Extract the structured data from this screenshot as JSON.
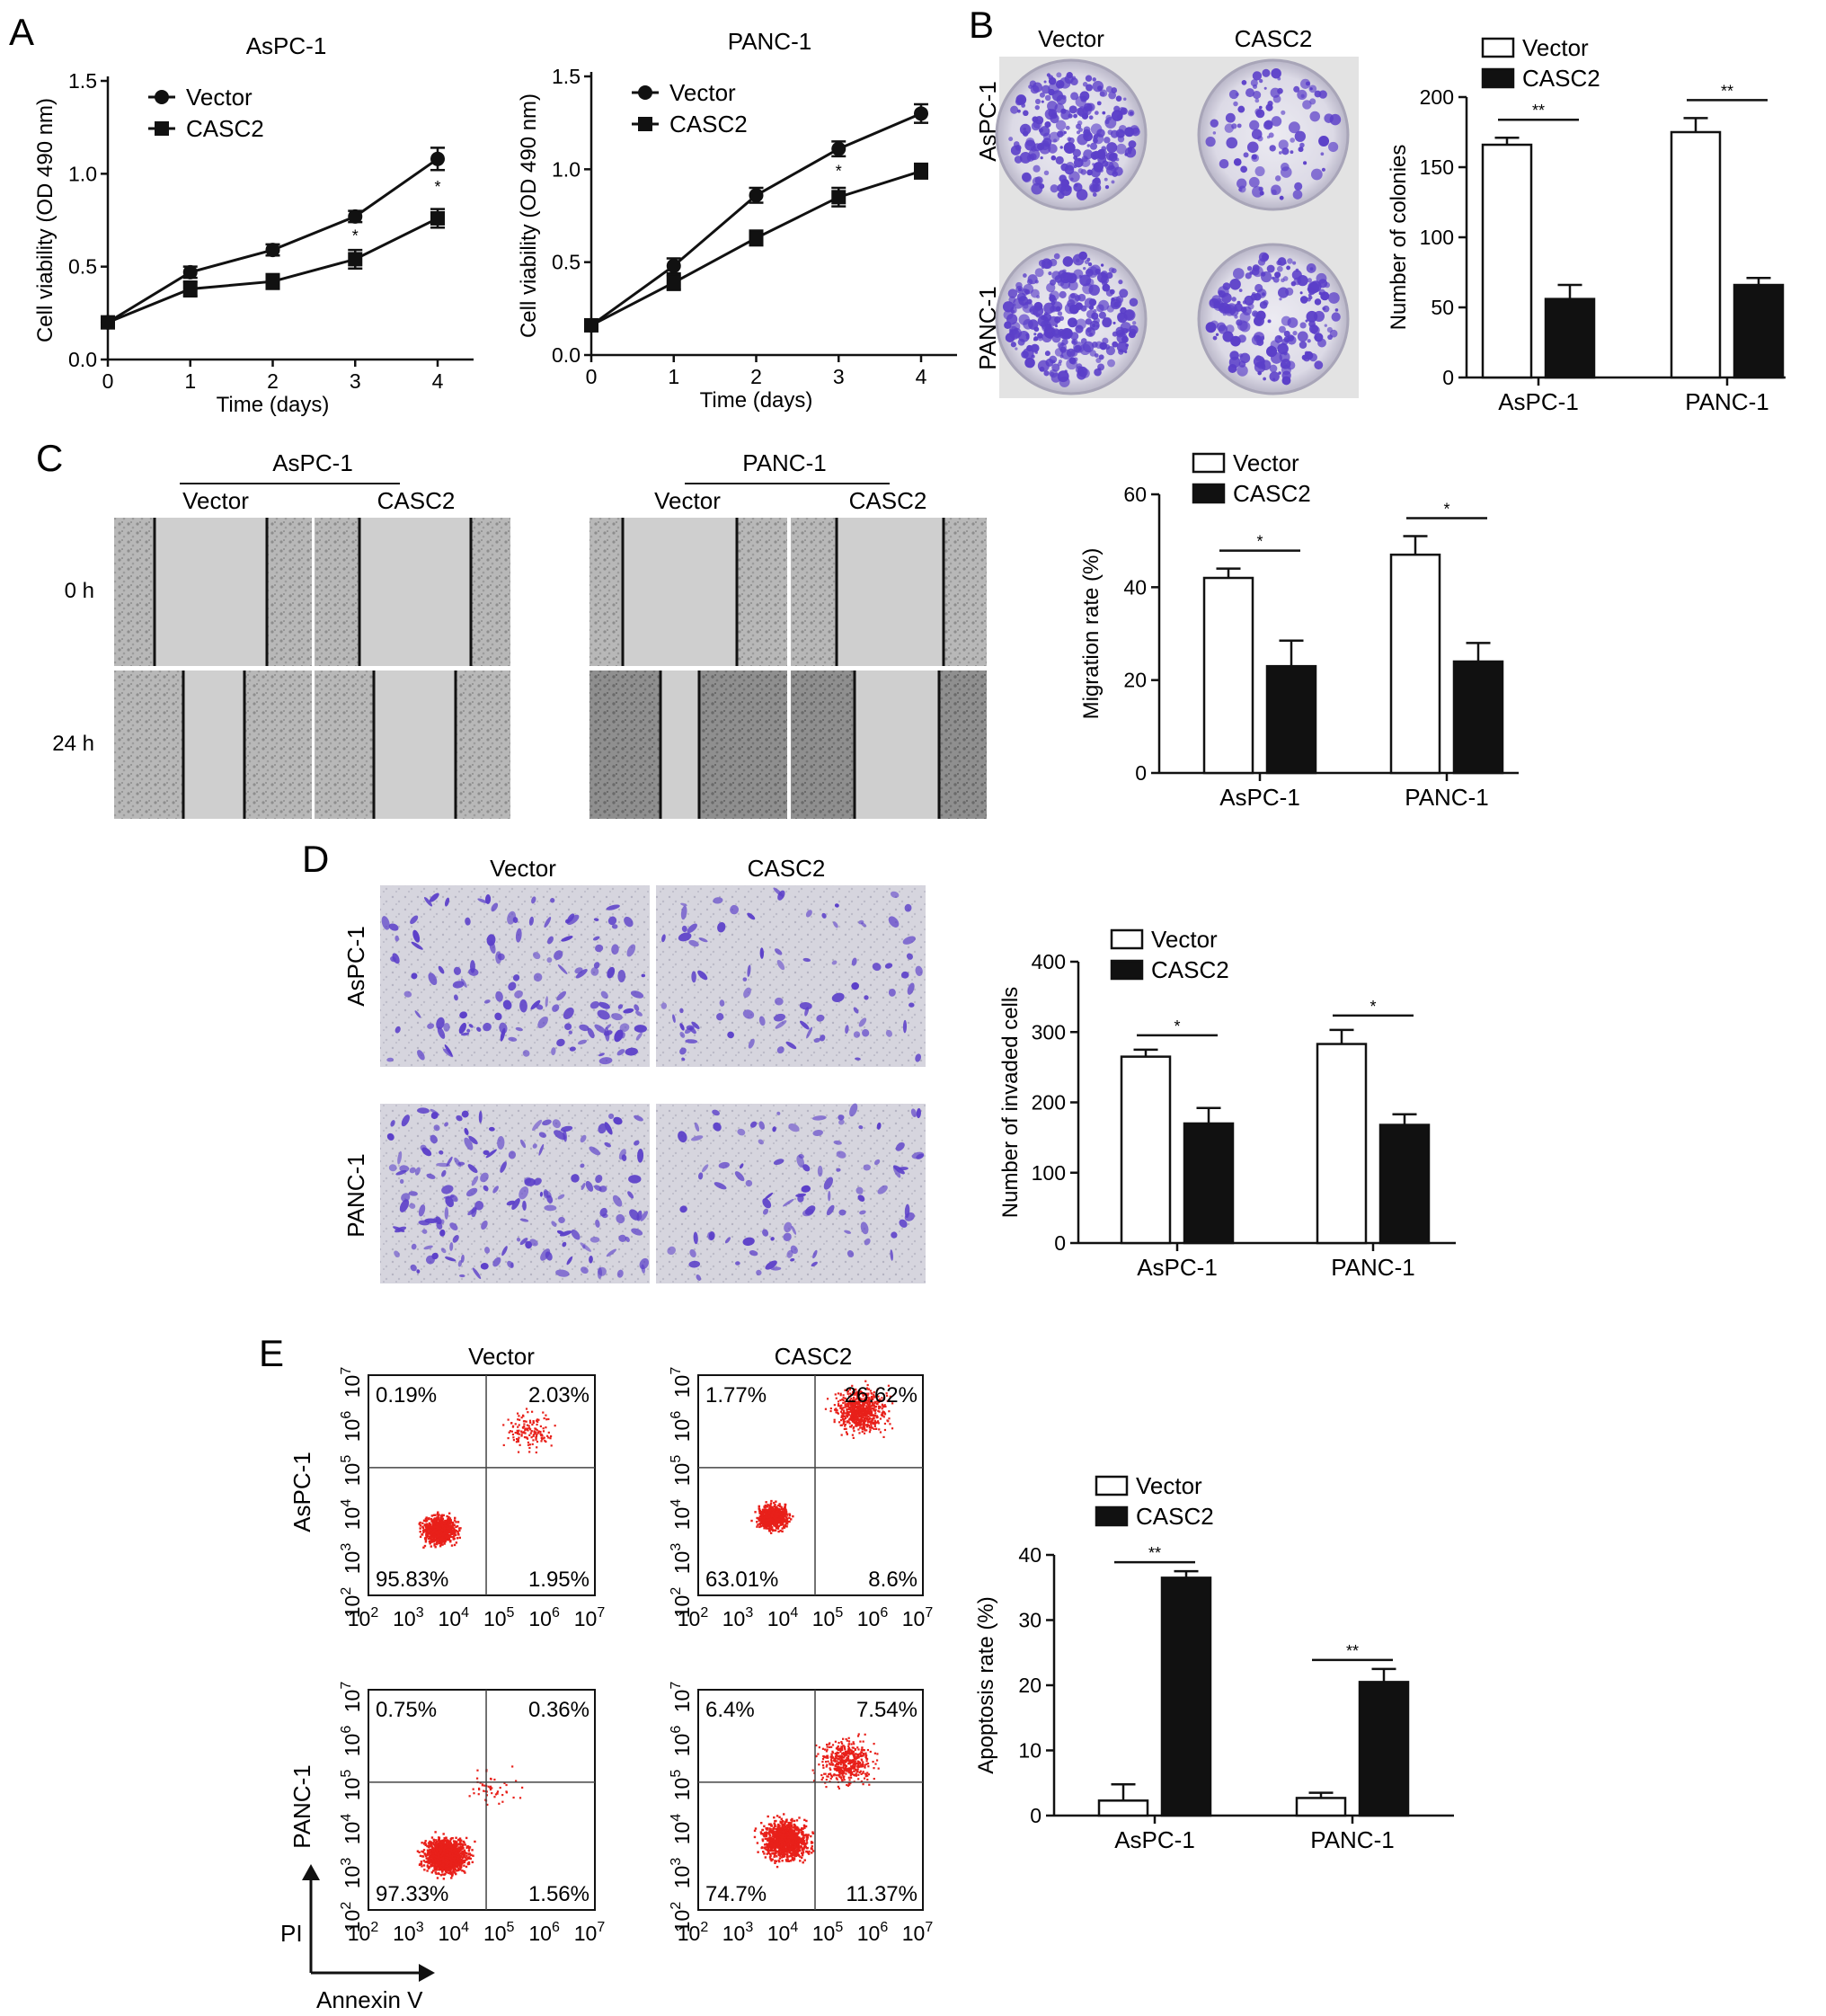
{
  "panels": {
    "A": {
      "letter": "A",
      "charts": [
        {
          "title": "AsPC-1",
          "type": "line",
          "xlabel": "Time (days)",
          "ylabel": "Cell viability (OD 490 nm)",
          "x": [
            0,
            1,
            2,
            3,
            4
          ],
          "ylim": [
            0,
            1.5
          ],
          "yticks": [
            "0.0",
            "0.5",
            "1.0",
            "1.5"
          ],
          "legend": [
            "Vector",
            "CASC2"
          ],
          "series": [
            {
              "name": "Vector",
              "marker": "circle",
              "values": [
                0.2,
                0.47,
                0.59,
                0.77,
                1.08
              ],
              "err": [
                0.02,
                0.03,
                0.03,
                0.03,
                0.06
              ]
            },
            {
              "name": "CASC2",
              "marker": "square",
              "values": [
                0.2,
                0.38,
                0.42,
                0.54,
                0.76
              ],
              "err": [
                0.02,
                0.04,
                0.04,
                0.05,
                0.05
              ]
            }
          ],
          "annotations": [
            {
              "x": 3,
              "label": "*"
            },
            {
              "x": 4,
              "label": "*"
            }
          ]
        },
        {
          "title": "PANC-1",
          "type": "line",
          "xlabel": "Time (days)",
          "ylabel": "Cell viability (OD 490 nm)",
          "x": [
            0,
            1,
            2,
            3,
            4
          ],
          "ylim": [
            0,
            1.5
          ],
          "yticks": [
            "0.0",
            "0.5",
            "1.0",
            "1.5"
          ],
          "legend": [
            "Vector",
            "CASC2"
          ],
          "series": [
            {
              "name": "Vector",
              "marker": "circle",
              "values": [
                0.16,
                0.48,
                0.86,
                1.11,
                1.3
              ],
              "err": [
                0.03,
                0.04,
                0.04,
                0.04,
                0.05
              ]
            },
            {
              "name": "CASC2",
              "marker": "square",
              "values": [
                0.16,
                0.39,
                0.63,
                0.85,
                0.99
              ],
              "err": [
                0.03,
                0.04,
                0.04,
                0.05,
                0.04
              ]
            }
          ],
          "annotations": [
            {
              "x": 3,
              "label": "*"
            }
          ]
        }
      ]
    },
    "B": {
      "letter": "B",
      "image_cols": [
        "Vector",
        "CASC2"
      ],
      "image_rows": [
        "AsPC-1",
        "PANC-1"
      ],
      "chart": {
        "type": "bar",
        "categories": [
          "AsPC-1",
          "PANC-1"
        ],
        "ylabel": "Number of colonies",
        "ylim": [
          0,
          200
        ],
        "yticks": [
          "0",
          "50",
          "100",
          "150",
          "200"
        ],
        "legend": [
          "Vector",
          "CASC2"
        ],
        "series": [
          {
            "name": "Vector",
            "values": [
              166,
              175
            ],
            "err": [
              5,
              10
            ]
          },
          {
            "name": "CASC2",
            "values": [
              56,
              66
            ],
            "err": [
              10,
              5
            ]
          }
        ],
        "significance": [
          "**",
          "**"
        ]
      }
    },
    "C": {
      "letter": "C",
      "groups": [
        "AsPC-1",
        "PANC-1"
      ],
      "image_cols": [
        "Vector",
        "CASC2"
      ],
      "image_rows": [
        "0 h",
        "24 h"
      ],
      "chart": {
        "type": "bar",
        "categories": [
          "AsPC-1",
          "PANC-1"
        ],
        "ylabel": "Migration rate (%)",
        "ylim": [
          0,
          60
        ],
        "yticks": [
          "0",
          "20",
          "40",
          "60"
        ],
        "legend": [
          "Vector",
          "CASC2"
        ],
        "series": [
          {
            "name": "Vector",
            "values": [
              42,
              47
            ],
            "err": [
              2,
              4
            ]
          },
          {
            "name": "CASC2",
            "values": [
              23,
              24
            ],
            "err": [
              5.5,
              4
            ]
          }
        ],
        "significance": [
          "*",
          "*"
        ]
      }
    },
    "D": {
      "letter": "D",
      "image_cols": [
        "Vector",
        "CASC2"
      ],
      "image_rows": [
        "AsPC-1",
        "PANC-1"
      ],
      "chart": {
        "type": "bar",
        "categories": [
          "AsPC-1",
          "PANC-1"
        ],
        "ylabel": "Number of invaded cells",
        "ylim": [
          0,
          400
        ],
        "yticks": [
          "0",
          "100",
          "200",
          "300",
          "400"
        ],
        "legend": [
          "Vector",
          "CASC2"
        ],
        "series": [
          {
            "name": "Vector",
            "values": [
              265,
              283
            ],
            "err": [
              10,
              20
            ]
          },
          {
            "name": "CASC2",
            "values": [
              170,
              168
            ],
            "err": [
              22,
              15
            ]
          }
        ],
        "significance": [
          "*",
          "*"
        ]
      }
    },
    "E": {
      "letter": "E",
      "cols": [
        "Vector",
        "CASC2"
      ],
      "rows": [
        "AsPC-1",
        "PANC-1"
      ],
      "flow_axis_ticks": [
        "2",
        "3",
        "4",
        "5",
        "6",
        "7"
      ],
      "flow_axis_base": "10",
      "axis_x": "Annexin V",
      "axis_y": "PI",
      "quadrants": [
        {
          "tl": "0.19%",
          "tr": "2.03%",
          "bl": "95.83%",
          "br": "1.95%"
        },
        {
          "tl": "1.77%",
          "tr": "26.62%",
          "bl": "63.01%",
          "br": "8.6%"
        },
        {
          "tl": "0.75%",
          "tr": "0.36%",
          "bl": "97.33%",
          "br": "1.56%"
        },
        {
          "tl": "6.4%",
          "tr": "7.54%",
          "bl": "74.7%",
          "br": "11.37%"
        }
      ],
      "chart": {
        "type": "bar",
        "categories": [
          "AsPC-1",
          "PANC-1"
        ],
        "ylabel": "Apoptosis rate (%)",
        "ylim": [
          0,
          40
        ],
        "yticks": [
          "0",
          "10",
          "20",
          "30",
          "40"
        ],
        "legend": [
          "Vector",
          "CASC2"
        ],
        "series": [
          {
            "name": "Vector",
            "values": [
              2.3,
              2.7
            ],
            "err": [
              2.5,
              0.8
            ]
          },
          {
            "name": "CASC2",
            "values": [
              36.5,
              20.5
            ],
            "err": [
              1,
              2
            ]
          }
        ],
        "significance": [
          "**",
          "**"
        ]
      }
    }
  },
  "colors": {
    "ink": "#111111",
    "crystal_violet": "#5b3fc9",
    "flow_dots": "#e8201a",
    "plate_bg": "#d9d6e4",
    "scratch_bg": "#c9c9c9"
  }
}
